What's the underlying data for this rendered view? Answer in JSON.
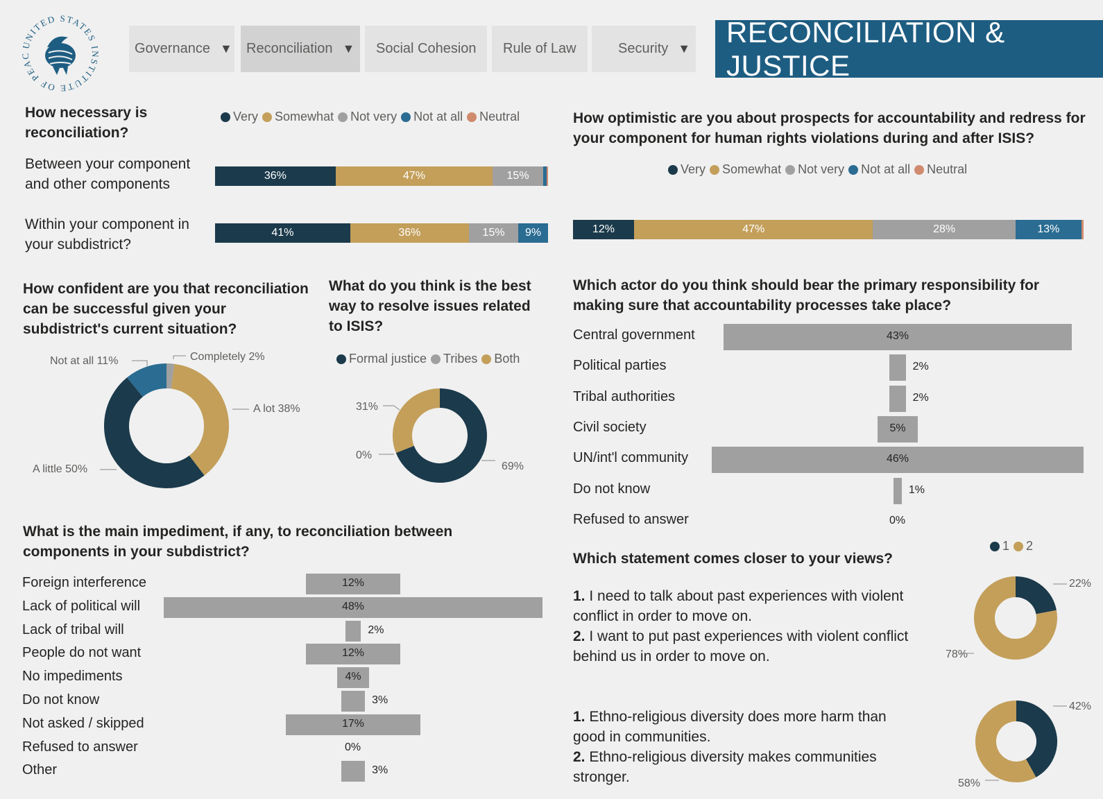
{
  "nav": {
    "tabs": [
      {
        "label": "Governance",
        "dropdown": true
      },
      {
        "label": "Reconciliation",
        "dropdown": true,
        "active": true
      },
      {
        "label": "Social Cohesion",
        "dropdown": false
      },
      {
        "label": "Rule of Law",
        "dropdown": false
      },
      {
        "label": "Security",
        "dropdown": true
      }
    ],
    "banner": "RECONCILIATION & JUSTICE",
    "logo_text": "UNITED STATES INSTITUTE OF PEACE"
  },
  "colors": {
    "very": "#1b3a4b",
    "somewhat": "#c39f5a",
    "not_very": "#a0a0a0",
    "not_at_all": "#2a6c92",
    "neutral": "#d08a6e",
    "bar": "#a0a0a0",
    "banner": "#1e5d82"
  },
  "legend5": [
    "Very",
    "Somewhat",
    "Not very",
    "Not at all",
    "Neutral"
  ],
  "chart_data": [
    {
      "id": "necessity",
      "type": "bar",
      "orientation": "horizontal-stacked",
      "title": "How necessary is reconciliation?",
      "categories": [
        "Between your component and other components",
        "Within your component in your subdistrict?"
      ],
      "series": [
        {
          "name": "Very",
          "values": [
            36,
            41
          ]
        },
        {
          "name": "Somewhat",
          "values": [
            47,
            36
          ]
        },
        {
          "name": "Not very",
          "values": [
            15,
            15
          ]
        },
        {
          "name": "Not at all",
          "values": [
            1,
            9
          ]
        },
        {
          "name": "Neutral",
          "values": [
            0.5,
            0
          ]
        }
      ],
      "labels": [
        [
          "36%",
          "47%",
          "15%",
          "",
          ""
        ],
        [
          "41%",
          "36%",
          "15%",
          "9%",
          ""
        ]
      ]
    },
    {
      "id": "optimism",
      "type": "bar",
      "orientation": "horizontal-stacked",
      "title": "How optimistic are you about prospects for accountability and redress for your component for human rights violations during and after ISIS?",
      "categories": [
        ""
      ],
      "series": [
        {
          "name": "Very",
          "values": [
            12
          ]
        },
        {
          "name": "Somewhat",
          "values": [
            47
          ]
        },
        {
          "name": "Not very",
          "values": [
            28
          ]
        },
        {
          "name": "Not at all",
          "values": [
            13
          ]
        },
        {
          "name": "Neutral",
          "values": [
            0.4
          ]
        }
      ],
      "labels": [
        [
          "12%",
          "47%",
          "28%",
          "13%",
          ""
        ]
      ]
    },
    {
      "id": "confidence",
      "type": "pie",
      "title": "How confident are you that reconciliation can be successful given your subdistrict's current situation?",
      "slices": [
        {
          "label": "Completely",
          "value": 2,
          "color": "#a0a0a0",
          "text": "Completely 2%"
        },
        {
          "label": "A lot",
          "value": 38,
          "color": "#c39f5a",
          "text": "A lot 38%"
        },
        {
          "label": "A little",
          "value": 50,
          "color": "#1b3a4b",
          "text": "A little 50%"
        },
        {
          "label": "Not at all",
          "value": 11,
          "color": "#2a6c92",
          "text": "Not at all 11%"
        }
      ]
    },
    {
      "id": "resolve",
      "type": "pie",
      "title": "What do you think is the best way to resolve issues related to ISIS?",
      "legend": [
        "Formal justice",
        "Tribes",
        "Both"
      ],
      "slices": [
        {
          "label": "Formal justice",
          "value": 69,
          "color": "#1b3a4b",
          "text": "69%"
        },
        {
          "label": "Tribes",
          "value": 0,
          "color": "#a0a0a0",
          "text": "0%"
        },
        {
          "label": "Both",
          "value": 31,
          "color": "#c39f5a",
          "text": "31%"
        }
      ]
    },
    {
      "id": "actor",
      "type": "bar",
      "orientation": "horizontal-centered",
      "title": "Which actor do you think should bear the primary responsibility for making sure that accountability processes take place?",
      "categories": [
        "Central government",
        "Political parties",
        "Tribal authorities",
        "Civil society",
        "UN/int'l community",
        "Do not know",
        "Refused to answer"
      ],
      "values": [
        43,
        2,
        2,
        5,
        46,
        1,
        0
      ],
      "labels": [
        "43%",
        "2%",
        "2%",
        "5%",
        "46%",
        "1%",
        "0%"
      ]
    },
    {
      "id": "impediment",
      "type": "bar",
      "orientation": "horizontal-centered",
      "title": "What is the main impediment, if any, to reconciliation between components in your subdistrict?",
      "categories": [
        "Foreign interference",
        "Lack of political will",
        "Lack of tribal will",
        "People do not want",
        "No impediments",
        "Do not know",
        "Not asked / skipped",
        "Refused to answer",
        "Other"
      ],
      "values": [
        12,
        48,
        2,
        12,
        4,
        3,
        17,
        0,
        3
      ],
      "labels": [
        "12%",
        "48%",
        "2%",
        "12%",
        "4%",
        "3%",
        "17%",
        "0%",
        "3%"
      ]
    },
    {
      "id": "views1",
      "type": "pie",
      "legend": [
        "1",
        "2"
      ],
      "slices": [
        {
          "label": "1",
          "value": 22,
          "color": "#1b3a4b",
          "text": "22%"
        },
        {
          "label": "2",
          "value": 78,
          "color": "#c39f5a",
          "text": "78%"
        }
      ]
    },
    {
      "id": "views2",
      "type": "pie",
      "slices": [
        {
          "label": "1",
          "value": 42,
          "color": "#1b3a4b",
          "text": "42%"
        },
        {
          "label": "2",
          "value": 58,
          "color": "#c39f5a",
          "text": "58%"
        }
      ]
    }
  ],
  "views": {
    "title": "Which statement comes closer to your views?",
    "s1": {
      "n1": "1.",
      "t1": "I need to talk about past experiences with violent conflict in order to move on.",
      "n2": "2.",
      "t2": "I want to put past experiences with violent conflict behind us in order to move on."
    },
    "s2": {
      "n1": "1.",
      "t1": "Ethno-religious diversity does more harm than good in communities.",
      "n2": "2.",
      "t2": "Ethno-religious diversity makes communities stronger."
    }
  }
}
